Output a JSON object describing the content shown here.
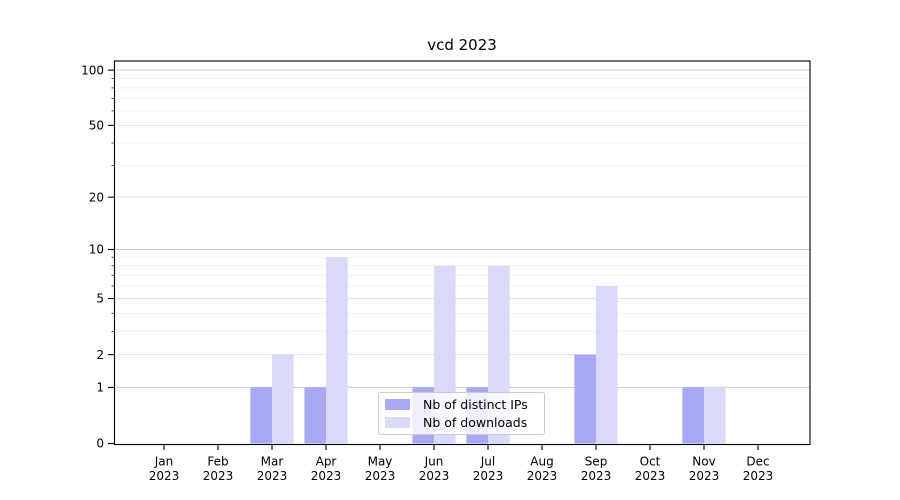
{
  "figure": {
    "title": "vcd 2023"
  },
  "chart_data": {
    "type": "bar",
    "title": "vcd 2023",
    "x": {
      "categories": [
        "Jan",
        "Feb",
        "Mar",
        "Apr",
        "May",
        "Jun",
        "Jul",
        "Aug",
        "Sep",
        "Oct",
        "Nov",
        "Dec"
      ],
      "year": "2023"
    },
    "series": [
      {
        "name": "Nb of distinct IPs",
        "color": "#a8a8f4",
        "values": [
          0,
          0,
          1,
          1,
          0,
          1,
          1,
          0,
          2,
          0,
          1,
          0
        ]
      },
      {
        "name": "Nb of downloads",
        "color": "#d9d9f9",
        "values": [
          0,
          0,
          2,
          9,
          0,
          8,
          8,
          0,
          6,
          0,
          1,
          0
        ]
      }
    ],
    "y_axis": {
      "scale": "log10(1+x)",
      "ticks": [
        0,
        1,
        2,
        5,
        10,
        20,
        50,
        100
      ],
      "tick_labels": [
        "0",
        "1",
        "2",
        "5",
        "10",
        "20",
        "50",
        "100"
      ],
      "minor_ticks": [
        3,
        4,
        6,
        7,
        8,
        9,
        30,
        40,
        60,
        70,
        80,
        90
      ],
      "range": [
        0,
        112
      ]
    },
    "legend_position": "lower center",
    "grid": true
  },
  "colors": {
    "spine": "#000000",
    "text": "#000000",
    "grid_major": "#c9c9c9",
    "grid_mid": "#e3e3e3",
    "grid_minor": "#f1f1f1",
    "legend_border": "#cccccc"
  }
}
